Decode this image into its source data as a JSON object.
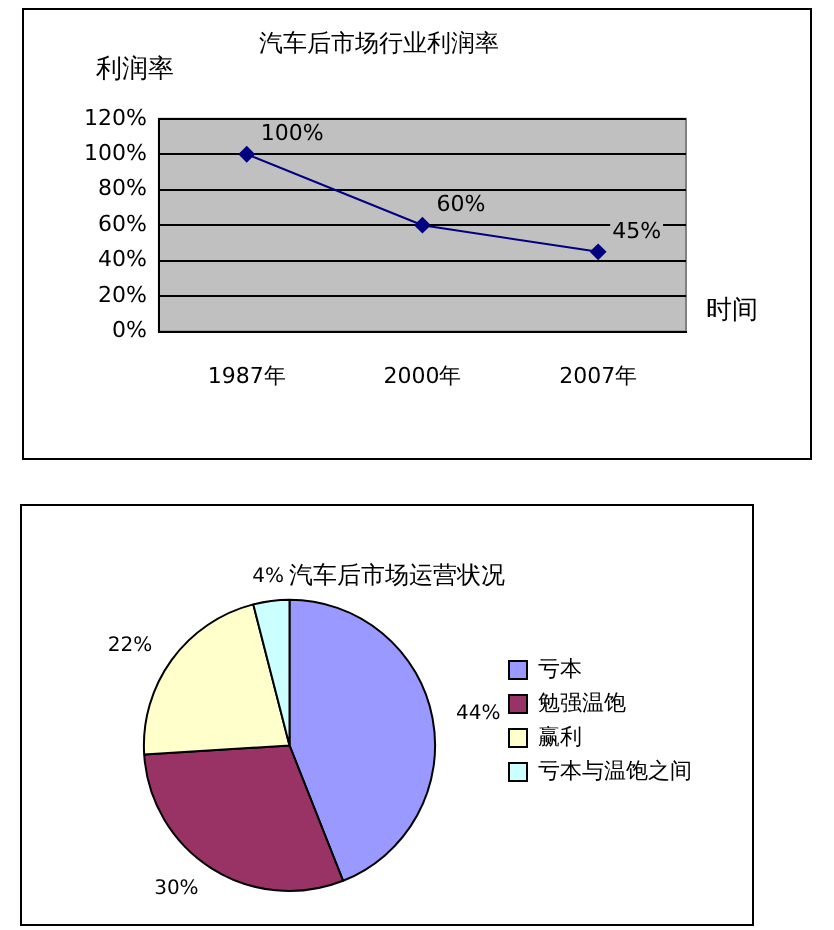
{
  "chart_data": [
    {
      "type": "line",
      "title": "汽车后市场行业利润率",
      "ylabel": "利润率",
      "xlabel": "时间",
      "categories": [
        "1987年",
        "2000年",
        "2007年"
      ],
      "series": [
        {
          "color": "#000080",
          "values": [
            100,
            60,
            45
          ],
          "value_labels": [
            "100%",
            "60%",
            "45%"
          ]
        }
      ],
      "ylim": [
        0,
        120
      ],
      "yticks": [
        {
          "value": 0,
          "label": "0%"
        },
        {
          "value": 20,
          "label": "20%"
        },
        {
          "value": 40,
          "label": "40%"
        },
        {
          "value": 60,
          "label": "60%"
        },
        {
          "value": 80,
          "label": "80%"
        },
        {
          "value": 100,
          "label": "100%"
        },
        {
          "value": 120,
          "label": "120%"
        }
      ],
      "grid": "y",
      "legend": false,
      "marker": "diamond",
      "line_style": "solid"
    },
    {
      "type": "pie",
      "title": "汽车后市场运营状况",
      "categories": [
        "亏本",
        "勉强温饱",
        "赢利",
        "亏本与温饱之间"
      ],
      "values": [
        44,
        30,
        22,
        4
      ],
      "colors": [
        "#9999ff",
        "#993366",
        "#ffffcc",
        "#ccffff"
      ],
      "value_labels": [
        "44%",
        "30%",
        "22%",
        "4%"
      ],
      "legend": "right"
    }
  ]
}
